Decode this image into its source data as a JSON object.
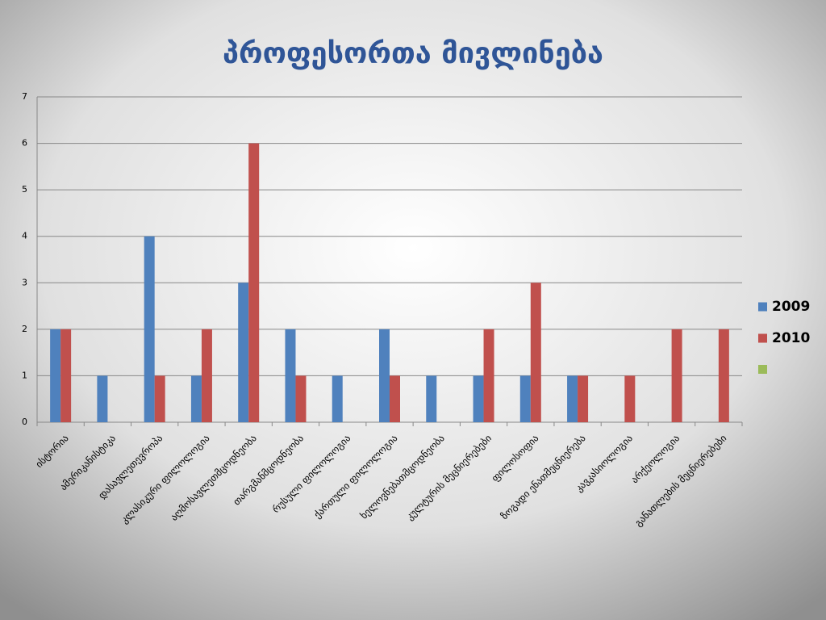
{
  "chart_data": {
    "type": "bar",
    "title": "პროფესორთა მივლინება",
    "categories": [
      "ისტორია",
      "ამერიკანისტიკა",
      "დასავლეთევროპა",
      "კლასიკური ფილოლოგია",
      "აღმოსავლეთმცოდნეობა",
      "თარგმანმცოდნეობა",
      "რუსული ფილოლოგია",
      "ქართული ფილოლოგია",
      "ხელოვნებათმცოდნეობა",
      "კულტურის მეცნიერებები",
      "ფილოსოფია",
      "ზოგადი ენათმეცნიერება",
      "კავკასიოლოგია",
      "არქეოლოგია",
      "განათლების მეცნიერებები"
    ],
    "series": [
      {
        "name": "2009",
        "color": "#4f81bd",
        "values": [
          2,
          1,
          4,
          1,
          3,
          2,
          1,
          2,
          1,
          1,
          1,
          1,
          0,
          0,
          0
        ]
      },
      {
        "name": "2010",
        "color": "#c0504d",
        "values": [
          2,
          0,
          1,
          2,
          6,
          1,
          0,
          1,
          0,
          2,
          3,
          1,
          1,
          2,
          2
        ]
      }
    ],
    "ylim": [
      0,
      7
    ],
    "yticks": [
      0,
      1,
      2,
      3,
      4,
      5,
      6,
      7
    ],
    "grid": true,
    "legend": "right"
  }
}
